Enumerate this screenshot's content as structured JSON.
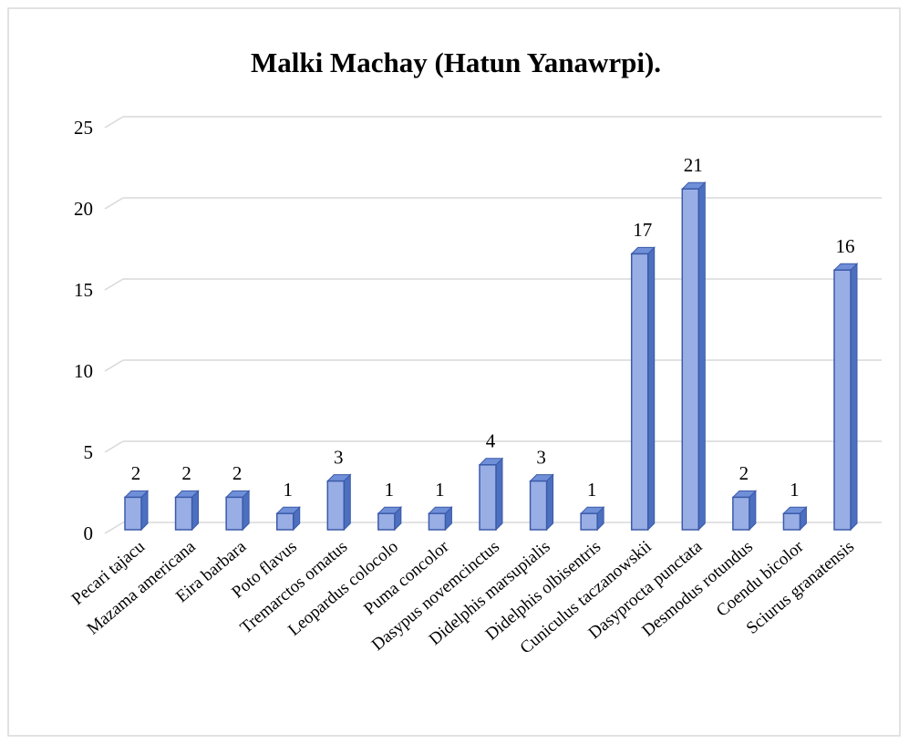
{
  "chart_data": {
    "type": "bar",
    "title": "Malki Machay (Hatun Yanawrpi).",
    "categories": [
      "Pecari tajacu",
      "Mazama americana",
      "Eira barbara",
      "Poto flavus",
      "Tremarctos ornatus",
      "Leopardus colocolo",
      "Puma concolor",
      "Dasypus novemcinctus",
      "Didelphis marsupialis",
      "Didelphis olbisentris",
      "Cuniculus taczanowskii",
      "Dasyprocta punctata",
      "Desmodus rotundus",
      "Coendu bicolor",
      "Sciurus granatensis"
    ],
    "values": [
      2,
      2,
      2,
      1,
      3,
      1,
      1,
      4,
      3,
      1,
      17,
      21,
      2,
      1,
      16
    ],
    "color": "#9aaee6",
    "ylim": [
      0,
      25
    ],
    "yticks": [
      0,
      5,
      10,
      15,
      20,
      25
    ],
    "grid": true
  }
}
